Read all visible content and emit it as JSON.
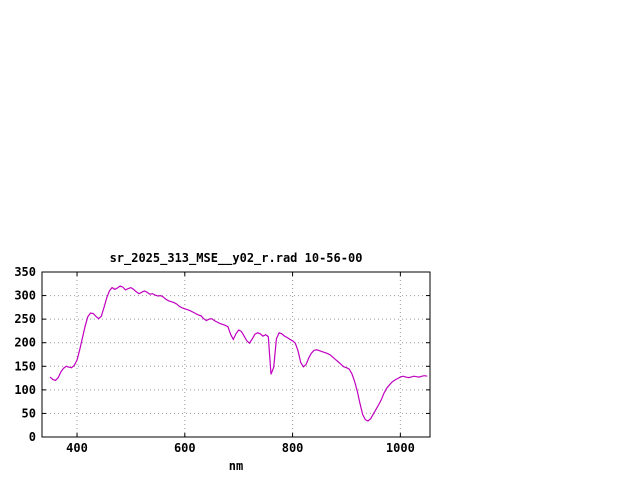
{
  "page": {
    "background_color": "#ffffff"
  },
  "chart_data": {
    "type": "line",
    "title": "sr_2025_313_MSE__y02_r.rad 10-56-00",
    "xlabel": "nm",
    "ylabel": "",
    "xlim": [
      335,
      1055
    ],
    "ylim": [
      0,
      350
    ],
    "xticks": [
      400,
      600,
      800,
      1000
    ],
    "yticks": [
      0,
      50,
      100,
      150,
      200,
      250,
      300,
      350
    ],
    "grid": true,
    "legend": "none",
    "line_color": "#c000c0",
    "series": [
      {
        "name": "sr_2025_313_MSE__y02_r.rad",
        "x": [
          350,
          355,
          360,
          365,
          370,
          375,
          380,
          385,
          390,
          395,
          400,
          405,
          410,
          415,
          420,
          425,
          430,
          435,
          440,
          445,
          450,
          455,
          460,
          465,
          470,
          475,
          480,
          485,
          490,
          495,
          500,
          505,
          510,
          515,
          520,
          525,
          530,
          535,
          540,
          545,
          550,
          555,
          560,
          565,
          570,
          575,
          580,
          585,
          590,
          595,
          600,
          605,
          610,
          615,
          620,
          625,
          630,
          635,
          640,
          645,
          650,
          655,
          660,
          665,
          670,
          675,
          680,
          685,
          690,
          695,
          700,
          705,
          710,
          715,
          720,
          725,
          730,
          735,
          740,
          745,
          750,
          755,
          760,
          765,
          770,
          775,
          780,
          785,
          790,
          795,
          800,
          805,
          810,
          815,
          820,
          825,
          830,
          835,
          840,
          845,
          850,
          855,
          860,
          865,
          870,
          875,
          880,
          885,
          890,
          895,
          900,
          905,
          910,
          915,
          920,
          925,
          930,
          935,
          940,
          945,
          950,
          955,
          960,
          965,
          970,
          975,
          980,
          985,
          990,
          995,
          1000,
          1005,
          1010,
          1015,
          1020,
          1025,
          1030,
          1035,
          1040,
          1045,
          1050
        ],
        "y": [
          127,
          122,
          120,
          126,
          138,
          146,
          150,
          148,
          147,
          152,
          163,
          185,
          210,
          235,
          255,
          263,
          262,
          256,
          251,
          256,
          275,
          295,
          310,
          317,
          313,
          316,
          320,
          318,
          312,
          315,
          317,
          313,
          308,
          304,
          307,
          310,
          307,
          303,
          304,
          301,
          299,
          300,
          297,
          292,
          289,
          287,
          285,
          282,
          277,
          274,
          272,
          270,
          268,
          265,
          262,
          259,
          257,
          251,
          247,
          250,
          251,
          247,
          244,
          241,
          239,
          237,
          234,
          218,
          207,
          219,
          227,
          224,
          214,
          204,
          199,
          208,
          218,
          221,
          219,
          214,
          217,
          213,
          133,
          148,
          208,
          221,
          219,
          214,
          211,
          207,
          204,
          199,
          183,
          158,
          149,
          154,
          168,
          178,
          184,
          185,
          183,
          181,
          179,
          177,
          174,
          169,
          164,
          159,
          154,
          149,
          147,
          144,
          134,
          118,
          97,
          72,
          48,
          37,
          34,
          39,
          49,
          59,
          69,
          80,
          94,
          104,
          111,
          117,
          121,
          124,
          127,
          129,
          127,
          126,
          127,
          129,
          128,
          127,
          129,
          130,
          129
        ]
      }
    ]
  }
}
